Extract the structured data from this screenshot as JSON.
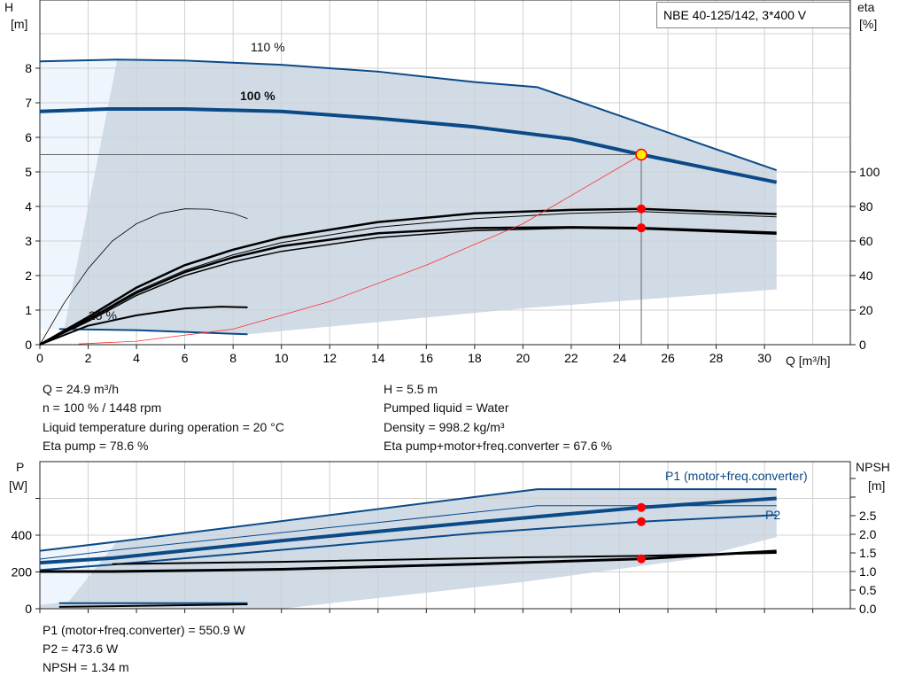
{
  "title": "NBE 40-125/142, 3*400 V",
  "colors": {
    "curve": "#0b4a87",
    "area": "#d0dbe6",
    "area_light": "#eef5fc",
    "eta": "#000000",
    "system": "#ff3030",
    "point": "#ff0000",
    "grid": "#d0d0d0"
  },
  "chart_data": [
    {
      "type": "line",
      "ylabel": "H",
      "yunit": "[m]",
      "y2label": "eta",
      "y2unit": "[%]",
      "xlabel": "Q [m³/h]",
      "xlim": [
        0,
        33
      ],
      "ylim": [
        0,
        9.9
      ],
      "y2lim": [
        0,
        198
      ],
      "grid": true,
      "xticks": [
        0,
        2,
        4,
        6,
        8,
        10,
        12,
        14,
        16,
        18,
        20,
        22,
        24,
        26,
        28,
        30
      ],
      "yticks": [
        0,
        1,
        2,
        3,
        4,
        5,
        6,
        7,
        8
      ],
      "y2ticks": [
        0,
        20,
        40,
        60,
        80,
        100
      ],
      "annotations": [
        "110 %",
        "100 %",
        "25 %"
      ],
      "series": [
        {
          "name": "110 %",
          "axis": "H",
          "x": [
            0,
            3.2,
            6,
            10,
            14,
            18,
            20.6,
            30.5
          ],
          "y": [
            8.2,
            8.25,
            8.22,
            8.1,
            7.9,
            7.6,
            7.45,
            5.05
          ],
          "width": 2
        },
        {
          "name": "100 %",
          "axis": "H",
          "x": [
            0,
            2.8,
            6,
            10,
            14,
            18,
            22,
            24.9,
            30.5
          ],
          "y": [
            6.75,
            6.82,
            6.82,
            6.75,
            6.55,
            6.3,
            5.95,
            5.5,
            4.7
          ],
          "width": 4
        },
        {
          "name": "25 %",
          "axis": "H",
          "x": [
            0.8,
            4,
            8.6
          ],
          "y": [
            0.45,
            0.42,
            0.3
          ],
          "width": 2
        },
        {
          "axis": "eta",
          "x": [
            0,
            2,
            4,
            6,
            8,
            10,
            14,
            18,
            22,
            24.9,
            30.5
          ],
          "y": [
            0,
            16,
            33,
            46,
            55,
            62,
            71,
            76,
            78,
            78.6,
            75.6
          ],
          "width": 2.5,
          "color": "eta"
        },
        {
          "axis": "eta",
          "x": [
            0,
            2,
            4,
            6,
            8,
            10,
            14,
            18,
            22,
            24.9,
            30.5
          ],
          "y": [
            0,
            15,
            31,
            43,
            52,
            59,
            68,
            73,
            76,
            77,
            74
          ],
          "width": 1,
          "color": "eta"
        },
        {
          "axis": "eta",
          "x": [
            0,
            2,
            4,
            6,
            8,
            10,
            14,
            18,
            22,
            24.9,
            30.5
          ],
          "y": [
            0,
            14.5,
            30,
            42,
            50.5,
            57,
            64.5,
            67.5,
            68,
            67.6,
            64.8
          ],
          "width": 2.5,
          "color": "eta"
        },
        {
          "axis": "eta",
          "x": [
            0,
            2,
            4,
            6,
            8,
            10,
            14,
            18,
            22,
            24.9,
            30.5
          ],
          "y": [
            0,
            13.5,
            28.5,
            40,
            48,
            54,
            62,
            66,
            67.5,
            67,
            64
          ],
          "width": 1.5,
          "color": "eta"
        },
        {
          "axis": "eta",
          "x": [
            0,
            2,
            4,
            6,
            7.5,
            8.6
          ],
          "y": [
            0,
            11,
            17,
            21,
            22,
            21.6
          ],
          "width": 2,
          "color": "eta"
        },
        {
          "axis": "eta",
          "x": [
            0,
            1,
            2,
            3,
            4,
            5,
            6,
            7,
            8,
            8.6
          ],
          "y": [
            0,
            24,
            44,
            60,
            70,
            76,
            78.6,
            78.4,
            76,
            73
          ],
          "width": 0.8,
          "color": "eta"
        },
        {
          "axis": "H",
          "x": [
            1.6,
            4,
            8,
            12,
            16,
            20,
            24.9
          ],
          "y": [
            0.02,
            0.1,
            0.45,
            1.25,
            2.3,
            3.5,
            5.5
          ],
          "width": 0.8,
          "color": "system"
        }
      ],
      "operating_point": {
        "Q": 24.9,
        "H": 5.5,
        "eta_pump": 78.6,
        "eta_total": 67.6
      }
    },
    {
      "type": "line",
      "ylabel": "P",
      "yunit": "[W]",
      "y2label": "NPSH",
      "y2unit": "[m]",
      "xlim": [
        0,
        33
      ],
      "ylim": [
        0,
        800
      ],
      "y2lim": [
        0,
        3.95
      ],
      "grid": true,
      "yticks": [
        0,
        200,
        400
      ],
      "y2ticks": [
        "0.0",
        "0.5",
        "1.0",
        "1.5",
        "2.0",
        "2.5"
      ],
      "legend": [
        "P1 (motor+freq.converter)",
        "P2"
      ],
      "series": [
        {
          "axis": "P",
          "x": [
            0,
            3.2,
            20.6,
            30.5
          ],
          "y": [
            315,
            365,
            650,
            650
          ],
          "width": 2
        },
        {
          "axis": "P",
          "x": [
            0,
            3.2,
            20.6,
            30.5
          ],
          "y": [
            270,
            320,
            560,
            560
          ],
          "width": 1
        },
        {
          "axis": "P",
          "x": [
            0,
            3,
            10,
            18,
            24.9,
            30.5
          ],
          "y": [
            250,
            275,
            370,
            470,
            550.9,
            600
          ],
          "width": 4
        },
        {
          "axis": "P",
          "x": [
            0,
            3,
            10,
            18,
            24.9,
            30.5
          ],
          "y": [
            210,
            240,
            320,
            410,
            473.6,
            510
          ],
          "width": 2
        },
        {
          "axis": "P",
          "x": [
            0.8,
            8.6
          ],
          "y": [
            30,
            30
          ],
          "width": 2
        },
        {
          "axis": "NPSH",
          "x": [
            3,
            10,
            20,
            24.9,
            30.5
          ],
          "y": [
            1.2,
            1.26,
            1.38,
            1.42,
            1.5
          ],
          "width": 2,
          "color": "eta"
        },
        {
          "axis": "NPSH",
          "x": [
            0,
            3,
            10,
            18,
            24.9,
            30.5
          ],
          "y": [
            1.0,
            1.0,
            1.06,
            1.2,
            1.34,
            1.55
          ],
          "width": 3,
          "color": "eta"
        },
        {
          "axis": "NPSH",
          "x": [
            0.8,
            8.6
          ],
          "y": [
            0.05,
            0.12
          ],
          "width": 2,
          "color": "eta"
        }
      ],
      "operating_point": {
        "Q": 24.9,
        "P1": 550.9,
        "P2": 473.6,
        "NPSH": 1.34
      }
    }
  ],
  "info1": {
    "q": "Q = 24.9 m³/h",
    "n": "n = 100 % / 1448 rpm",
    "temp": "Liquid temperature during operation = 20 °C",
    "eta_pump": "Eta pump = 78.6 %",
    "h": "H = 5.5 m",
    "liquid": "Pumped liquid = Water",
    "density": "Density = 998.2 kg/m³",
    "eta_total": "Eta pump+motor+freq.converter = 67.6 %"
  },
  "info2": {
    "p1": "P1 (motor+freq.converter) = 550.9 W",
    "p2": "P2 = 473.6 W",
    "npsh": "NPSH = 1.34 m"
  }
}
